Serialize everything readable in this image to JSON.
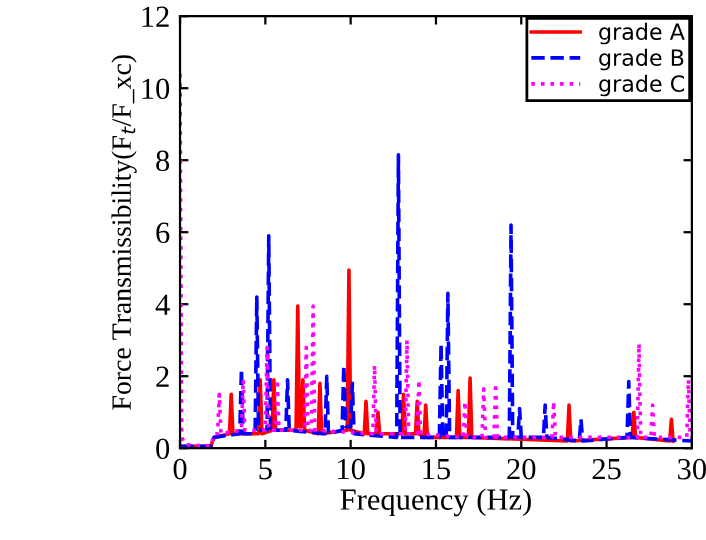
{
  "chart_data": {
    "type": "line",
    "xlabel": "Frequency (Hz)",
    "ylabel": "Force Transmissibility(F$_{t}$/F_xc)",
    "xlim": [
      0,
      30
    ],
    "xticks": [
      0,
      5,
      10,
      15,
      20,
      25,
      30
    ],
    "ylim": [
      0,
      12
    ],
    "yticks": [
      0,
      2,
      4,
      6,
      8,
      10,
      12
    ],
    "grid": false,
    "legend": "top right",
    "marker": "none",
    "series": [
      {
        "name": "grade A",
        "color": "#ff0000",
        "line_style": "solid",
        "x": [
          0,
          1.8,
          2.0,
          2.9,
          3.0,
          3.1,
          4.6,
          4.7,
          4.8,
          5.4,
          5.5,
          5.6,
          6.8,
          6.9,
          7.0,
          7.1,
          7.2,
          7.3,
          8.1,
          8.2,
          8.3,
          9.8,
          9.9,
          10.0,
          10.8,
          10.9,
          11.0,
          11.5,
          11.6,
          11.7,
          13.0,
          13.1,
          13.2,
          13.8,
          13.9,
          14.0,
          14.3,
          14.4,
          14.5,
          16.2,
          16.3,
          16.4,
          16.9,
          17.0,
          17.1,
          22.7,
          22.8,
          22.9,
          26.5,
          26.6,
          26.7,
          28.7,
          28.8,
          28.9
        ],
        "values": [
          0.05,
          0.05,
          0.3,
          0.4,
          1.5,
          0.4,
          0.4,
          1.9,
          0.4,
          0.5,
          1.9,
          0.5,
          0.5,
          3.95,
          0.6,
          0.6,
          1.9,
          0.5,
          0.4,
          1.8,
          0.4,
          0.5,
          4.95,
          0.5,
          0.4,
          1.3,
          0.4,
          0.4,
          1.0,
          0.4,
          0.4,
          1.5,
          0.4,
          0.4,
          1.3,
          0.4,
          0.3,
          1.2,
          0.3,
          0.3,
          1.6,
          0.3,
          0.3,
          1.95,
          0.3,
          0.2,
          1.2,
          0.2,
          0.3,
          1.0,
          0.3,
          0.2,
          0.8,
          0.2
        ]
      },
      {
        "name": "grade B",
        "color": "#0000ff",
        "line_style": "dashed",
        "x": [
          0,
          1.8,
          2.0,
          3.5,
          3.6,
          3.7,
          4.4,
          4.5,
          4.6,
          5.1,
          5.2,
          5.3,
          6.2,
          6.3,
          6.4,
          8.5,
          8.6,
          8.7,
          9.5,
          9.6,
          9.7,
          10.0,
          10.1,
          10.2,
          12.7,
          12.8,
          12.9,
          15.2,
          15.3,
          15.4,
          15.6,
          15.7,
          15.8,
          19.3,
          19.4,
          19.5,
          19.8,
          19.9,
          20.0,
          21.3,
          21.4,
          21.5,
          23.4,
          23.5,
          23.6,
          26.2,
          26.3,
          26.4,
          30
        ],
        "values": [
          0.05,
          0.05,
          0.3,
          0.4,
          2.2,
          0.4,
          0.4,
          4.2,
          0.5,
          0.5,
          5.9,
          0.5,
          0.5,
          1.9,
          0.5,
          0.4,
          2.0,
          0.4,
          0.5,
          2.3,
          0.6,
          0.6,
          1.8,
          0.4,
          0.3,
          8.15,
          0.3,
          0.3,
          2.9,
          0.3,
          0.3,
          4.3,
          0.3,
          0.3,
          6.2,
          0.3,
          0.3,
          1.1,
          0.3,
          0.3,
          1.2,
          0.3,
          0.2,
          0.8,
          0.2,
          0.3,
          1.85,
          0.3,
          0.2
        ]
      },
      {
        "name": "grade C",
        "color": "#ff00ff",
        "line_style": "dotted",
        "x": [
          0,
          0.1,
          0.3,
          1.8,
          2.0,
          2.2,
          2.3,
          2.4,
          3.6,
          3.7,
          3.8,
          5.0,
          5.1,
          5.2,
          5.6,
          5.7,
          5.8,
          7.3,
          7.4,
          7.5,
          7.7,
          7.8,
          7.9,
          11.3,
          11.4,
          11.5,
          13.2,
          13.3,
          13.4,
          13.9,
          14.0,
          14.1,
          16.6,
          16.7,
          16.8,
          17.7,
          17.8,
          17.9,
          18.4,
          18.5,
          18.6,
          21.8,
          21.9,
          22.0,
          26.8,
          26.9,
          27.0,
          27.6,
          27.7,
          27.8,
          29.7,
          29.8,
          29.9,
          30
        ],
        "values": [
          10.4,
          0.3,
          0.1,
          0.05,
          0.4,
          0.4,
          1.5,
          0.4,
          0.5,
          1.9,
          0.5,
          0.5,
          2.8,
          0.5,
          0.5,
          1.9,
          0.5,
          0.5,
          2.8,
          0.5,
          0.5,
          3.95,
          0.5,
          0.4,
          2.3,
          0.4,
          0.4,
          3.0,
          0.4,
          0.4,
          1.9,
          0.4,
          0.3,
          1.3,
          0.3,
          0.3,
          1.65,
          0.3,
          0.3,
          1.8,
          0.3,
          0.3,
          1.3,
          0.3,
          0.3,
          2.9,
          0.3,
          0.3,
          1.2,
          0.3,
          0.3,
          1.9,
          0.3,
          0.3
        ]
      }
    ]
  }
}
